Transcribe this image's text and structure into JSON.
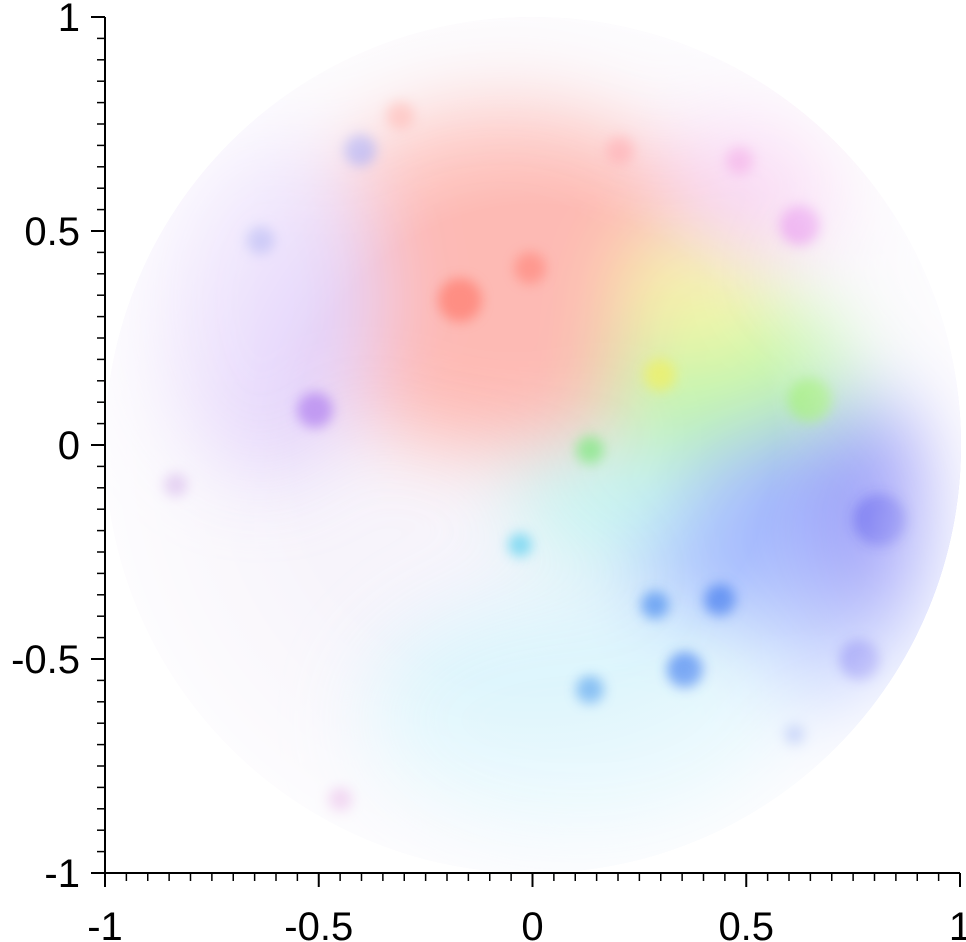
{
  "chart_data": {
    "type": "image",
    "xlim": [
      -1,
      1
    ],
    "ylim": [
      -1,
      1
    ],
    "xticks": [
      -1,
      -0.5,
      0,
      0.5,
      1
    ],
    "yticks": [
      -1,
      -0.5,
      0,
      0.5,
      1
    ],
    "xminorticks": [
      -0.95,
      -0.9,
      -0.85,
      -0.8,
      -0.75,
      -0.7,
      -0.65,
      -0.6,
      -0.55,
      -0.45,
      -0.4,
      -0.35,
      -0.3,
      -0.25,
      -0.2,
      -0.15,
      -0.1,
      -0.05,
      0.05,
      0.1,
      0.15,
      0.2,
      0.25,
      0.3,
      0.35,
      0.4,
      0.45,
      0.55,
      0.6,
      0.65,
      0.7,
      0.75,
      0.8,
      0.85,
      0.9,
      0.95
    ],
    "yminorticks": [
      -0.95,
      -0.9,
      -0.85,
      -0.8,
      -0.75,
      -0.7,
      -0.65,
      -0.6,
      -0.55,
      -0.45,
      -0.4,
      -0.35,
      -0.3,
      -0.25,
      -0.2,
      -0.15,
      -0.1,
      -0.05,
      0.05,
      0.1,
      0.15,
      0.2,
      0.25,
      0.3,
      0.35,
      0.4,
      0.45,
      0.55,
      0.6,
      0.65,
      0.7,
      0.75,
      0.8,
      0.85,
      0.9,
      0.95
    ]
  }
}
